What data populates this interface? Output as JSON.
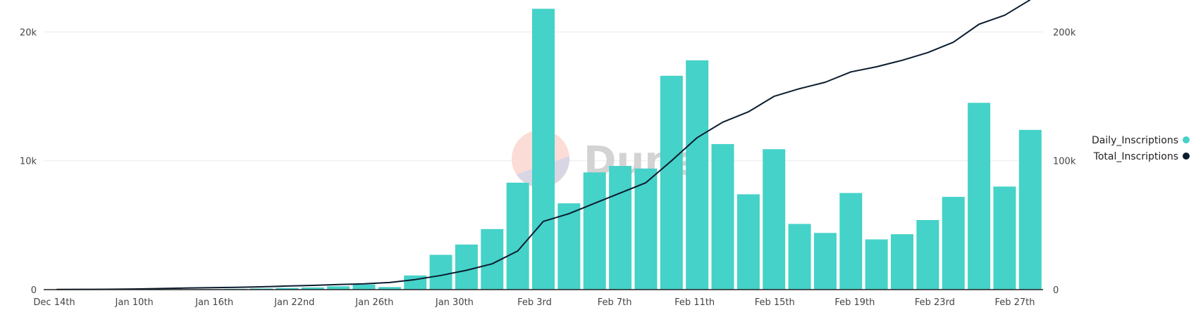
{
  "chart_data": {
    "type": "bar+line",
    "title": "",
    "watermark": "Dune",
    "x_ticks": [
      "Dec 14th",
      "Jan 10th",
      "Jan 16th",
      "Jan 22nd",
      "Jan 26th",
      "Jan 30th",
      "Feb 3rd",
      "Feb 7th",
      "Feb 11th",
      "Feb 15th",
      "Feb 19th",
      "Feb 23rd",
      "Feb 27th"
    ],
    "left_axis": {
      "ticks": [
        "0",
        "10k",
        "20k"
      ],
      "ylim": [
        0,
        21500
      ]
    },
    "right_axis": {
      "ticks": [
        "0",
        "100k",
        "200k"
      ],
      "ylim": [
        0,
        215000
      ]
    },
    "colors": {
      "bar": "#45d2c8",
      "line": "#0b1c2e",
      "grid": "#ececec"
    },
    "series": [
      {
        "name": "Daily_Inscriptions",
        "type": "bar",
        "axis": "left",
        "values": [
          2,
          3,
          5,
          8,
          12,
          20,
          40,
          60,
          90,
          130,
          170,
          260,
          400,
          200,
          1100,
          2700,
          3500,
          4700,
          8300,
          21800,
          6700,
          9100,
          9600,
          9400,
          16600,
          17800,
          11300,
          7400,
          10900,
          5100,
          4400,
          7500,
          3900,
          4300,
          5400,
          7200,
          14500,
          8000,
          12400
        ]
      },
      {
        "name": "Total_Inscriptions",
        "type": "line",
        "axis": "right",
        "values": [
          100,
          200,
          300,
          500,
          800,
          1200,
          1500,
          1800,
          2200,
          2800,
          3300,
          4000,
          4500,
          5500,
          7800,
          11000,
          15000,
          20000,
          30000,
          53000,
          59000,
          67000,
          75000,
          83000,
          100000,
          118000,
          130000,
          138000,
          150000,
          156000,
          161000,
          169000,
          173000,
          178000,
          184000,
          192000,
          206000,
          213000,
          225000
        ]
      }
    ],
    "legend": {
      "placement": "right",
      "items": [
        {
          "label": "Daily_Inscriptions",
          "color": "#45d2c8"
        },
        {
          "label": "Total_Inscriptions",
          "color": "#0b1c2e"
        }
      ]
    },
    "grid": true
  }
}
